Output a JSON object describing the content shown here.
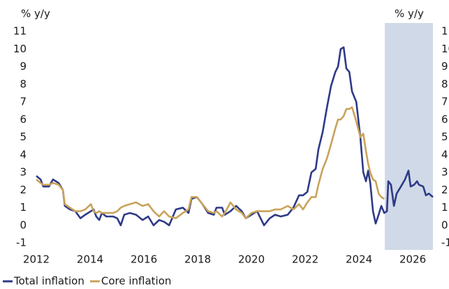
{
  "chart_data": {
    "type": "line",
    "y_label": "% y/y",
    "y2_label": "% y/y",
    "x": [
      2012.0,
      2012.16,
      2012.26,
      2012.47,
      2012.62,
      2012.83,
      2012.99,
      2013.06,
      2013.25,
      2013.45,
      2013.64,
      2013.82,
      2014.03,
      2014.13,
      2014.23,
      2014.34,
      2014.44,
      2014.6,
      2014.86,
      2015.01,
      2015.14,
      2015.27,
      2015.48,
      2015.71,
      2015.95,
      2016.16,
      2016.36,
      2016.57,
      2016.75,
      2016.94,
      2017.19,
      2017.45,
      2017.66,
      2017.77,
      2017.97,
      2018.18,
      2018.39,
      2018.6,
      2018.7,
      2018.91,
      2019.01,
      2019.22,
      2019.43,
      2019.64,
      2019.79,
      2020.0,
      2020.21,
      2020.47,
      2020.68,
      2020.88,
      2021.09,
      2021.35,
      2021.56,
      2021.77,
      2021.92,
      2022.08,
      2022.23,
      2022.39,
      2022.49,
      2022.65,
      2022.81,
      2022.96,
      2023.12,
      2023.22,
      2023.32,
      2023.43,
      2023.53,
      2023.64,
      2023.74,
      2023.9,
      2024.05,
      2024.16,
      2024.26,
      2024.34,
      2024.42,
      2024.52,
      2024.62,
      2024.73,
      2024.83,
      2024.94,
      2025.04,
      2025.09,
      2025.19,
      2025.3,
      2025.4,
      2025.56,
      2025.71,
      2025.84,
      2025.92,
      2026.05,
      2026.16,
      2026.23,
      2026.39,
      2026.49,
      2026.6,
      2026.75
    ],
    "series": [
      {
        "name": "Total inflation",
        "color": "#2e3a87",
        "values": [
          2.8,
          2.6,
          2.2,
          2.2,
          2.6,
          2.4,
          2.0,
          1.1,
          0.9,
          0.8,
          0.4,
          0.6,
          0.8,
          0.9,
          0.5,
          0.3,
          0.7,
          0.5,
          0.5,
          0.4,
          0.0,
          0.6,
          0.7,
          0.6,
          0.3,
          0.5,
          0.0,
          0.3,
          0.2,
          0.0,
          0.9,
          1.0,
          0.7,
          1.5,
          1.6,
          1.2,
          0.7,
          0.6,
          1.0,
          1.0,
          0.6,
          0.8,
          1.1,
          0.8,
          0.4,
          0.6,
          0.8,
          0.0,
          0.4,
          0.6,
          0.5,
          0.6,
          1.0,
          1.7,
          1.7,
          1.9,
          3.0,
          3.2,
          4.3,
          5.3,
          6.7,
          7.9,
          8.7,
          9.0,
          10.0,
          10.1,
          8.9,
          8.7,
          7.6,
          7.0,
          5.0,
          3.0,
          2.5,
          3.1,
          2.4,
          0.8,
          0.1,
          0.6,
          1.1,
          0.7,
          0.8,
          2.5,
          2.3,
          1.1,
          1.8,
          2.2,
          2.6,
          3.1,
          2.2,
          2.3,
          2.5,
          2.3,
          2.2,
          1.7,
          1.8,
          1.6
        ]
      },
      {
        "name": "Core inflation",
        "color": "#c9a35a",
        "values": [
          2.6,
          2.4,
          2.3,
          2.3,
          2.4,
          2.3,
          2.0,
          1.2,
          1.0,
          0.8,
          0.8,
          0.9,
          1.2,
          0.8,
          0.7,
          0.8,
          0.7,
          0.7,
          0.7,
          0.8,
          1.0,
          1.1,
          1.2,
          1.3,
          1.1,
          1.2,
          0.8,
          0.5,
          0.8,
          0.5,
          0.4,
          0.7,
          0.9,
          1.6,
          1.6,
          1.2,
          0.8,
          0.7,
          0.8,
          0.5,
          0.7,
          1.3,
          0.9,
          0.7,
          0.4,
          0.7,
          0.8,
          0.8,
          0.8,
          0.9,
          0.9,
          1.1,
          0.9,
          1.2,
          0.9,
          1.3,
          1.6,
          1.6,
          2.3,
          3.2,
          3.8,
          4.6,
          5.5,
          6.0,
          6.0,
          6.2,
          6.6,
          6.6,
          6.7,
          5.9,
          5.0,
          5.2,
          4.2,
          3.5,
          3.0,
          2.6,
          2.5,
          1.8,
          1.6,
          1.5,
          null,
          null,
          null,
          null,
          null,
          null,
          null,
          null,
          null,
          null,
          null,
          null,
          null,
          null,
          null,
          null
        ]
      }
    ],
    "xlim": [
      2012,
      2026.75
    ],
    "xticks": [
      2012,
      2014,
      2016,
      2018,
      2020,
      2022,
      2024,
      2026
    ],
    "ylim": [
      -1,
      11
    ],
    "yticks": [
      -1,
      0,
      1,
      2,
      3,
      4,
      5,
      6,
      7,
      8,
      9,
      10,
      11
    ],
    "y2lim": [
      -1,
      11
    ],
    "y2ticks": [
      -1,
      0,
      1,
      2,
      3,
      4,
      5,
      6,
      7,
      8,
      9,
      10,
      11
    ],
    "shade_xlim": [
      2024.96,
      2026.75
    ],
    "shade_color": "#d0d9e8",
    "grid": false,
    "legend": "bottom-left"
  }
}
